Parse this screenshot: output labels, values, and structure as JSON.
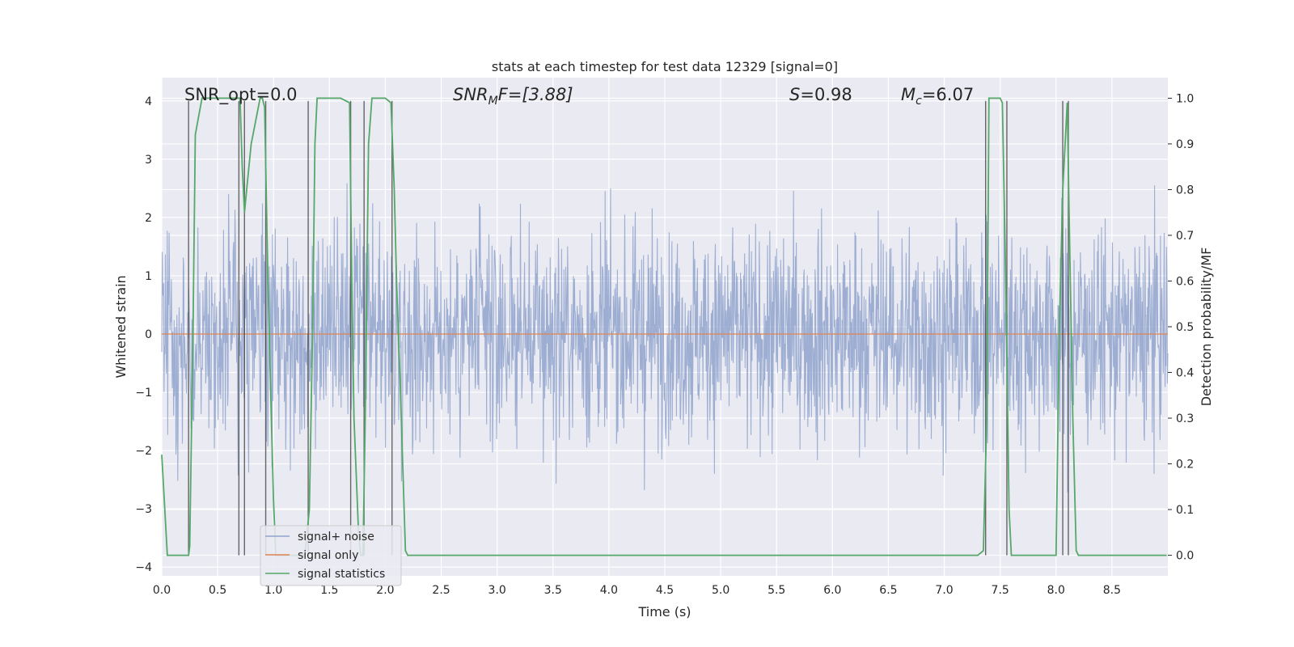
{
  "chart_data": {
    "type": "line",
    "title": "stats at each timestep for test data 12329 [signal=0]",
    "xlabel": "Time (s)",
    "ylabel": "Whitened strain",
    "ylabel_right": "Detection probability/MF",
    "xlim": [
      0.0,
      9.0
    ],
    "ylim": [
      -4.15,
      4.4
    ],
    "ylim_right": [
      -0.045,
      1.045
    ],
    "x_ticks": [
      "0.0",
      "0.5",
      "1.0",
      "1.5",
      "2.0",
      "2.5",
      "3.0",
      "3.5",
      "4.0",
      "4.5",
      "5.0",
      "5.5",
      "6.0",
      "6.5",
      "7.0",
      "7.5",
      "8.0",
      "8.5"
    ],
    "y_ticks": [
      "4",
      "3",
      "2",
      "1",
      "0",
      "−1",
      "−2",
      "−3",
      "−4"
    ],
    "y_ticks_right": [
      "1.0",
      "0.9",
      "0.8",
      "0.7",
      "0.6",
      "0.5",
      "0.4",
      "0.3",
      "0.2",
      "0.1",
      "0.0"
    ],
    "grid": true,
    "legend_placement": "lower-left",
    "annotations": {
      "snr_opt": "SNR_opt=0.0",
      "snr_mf_base": "SNR",
      "snr_mf_sub": "M",
      "snr_mf_rest": "F=[3.88]",
      "s_base": "S",
      "s_rest": "=0.98",
      "mc_base": "M",
      "mc_sub": "c",
      "mc_rest": "=6.07"
    },
    "series": [
      {
        "name": "signal+ noise",
        "color": "#8fa3cc",
        "description_values": "dense whitened noise, roughly within [-3.9, 3.7]"
      },
      {
        "name": "signal only",
        "color": "#dd8452",
        "values_constant": 0.0
      },
      {
        "name": "signal statistics",
        "color": "#55a868",
        "axis": "right",
        "x": [
          0.0,
          0.05,
          0.1,
          0.15,
          0.2,
          0.24,
          0.25,
          0.28,
          0.3,
          0.33,
          0.36,
          0.38,
          0.42,
          0.5,
          0.6,
          0.68,
          0.7,
          0.72,
          0.74,
          0.76,
          0.8,
          0.84,
          0.88,
          0.9,
          0.92,
          0.95,
          0.98,
          1.0,
          1.02,
          1.05,
          1.1,
          1.2,
          1.28,
          1.32,
          1.35,
          1.37,
          1.39,
          1.5,
          1.6,
          1.68,
          1.7,
          1.72,
          1.76,
          1.78,
          1.8,
          1.82,
          1.85,
          1.88,
          1.9,
          2.0,
          2.05,
          2.08,
          2.1,
          2.13,
          2.18,
          2.2,
          3.0,
          4.0,
          5.0,
          6.0,
          7.0,
          7.3,
          7.35,
          7.38,
          7.4,
          7.5,
          7.52,
          7.55,
          7.58,
          7.6,
          7.65,
          7.8,
          8.0,
          8.03,
          8.06,
          8.1,
          8.12,
          8.15,
          8.18,
          8.2,
          8.5,
          8.99
        ],
        "y": [
          0.22,
          0.0,
          0.0,
          0.0,
          0.0,
          0.0,
          0.02,
          0.5,
          0.92,
          0.96,
          1.0,
          1.0,
          1.0,
          1.0,
          1.0,
          1.0,
          1.0,
          0.85,
          0.75,
          0.8,
          0.9,
          0.95,
          1.0,
          1.0,
          0.98,
          0.6,
          0.3,
          0.12,
          0.0,
          0.0,
          0.0,
          0.0,
          0.0,
          0.1,
          0.5,
          0.9,
          1.0,
          1.0,
          1.0,
          0.99,
          0.6,
          0.3,
          0.05,
          0.0,
          0.0,
          0.3,
          0.9,
          1.0,
          1.0,
          1.0,
          0.99,
          0.8,
          0.6,
          0.4,
          0.01,
          0.0,
          0.0,
          0.0,
          0.0,
          0.0,
          0.0,
          0.0,
          0.01,
          0.3,
          1.0,
          1.0,
          0.99,
          0.6,
          0.1,
          0.0,
          0.0,
          0.0,
          0.0,
          0.5,
          0.8,
          0.99,
          0.7,
          0.3,
          0.01,
          0.0,
          0.0,
          0.0
        ]
      }
    ],
    "vertical_lines_x": [
      0.24,
      0.69,
      0.74,
      0.93,
      1.31,
      1.69,
      1.81,
      2.06,
      7.37,
      7.56,
      8.06,
      8.11
    ]
  }
}
